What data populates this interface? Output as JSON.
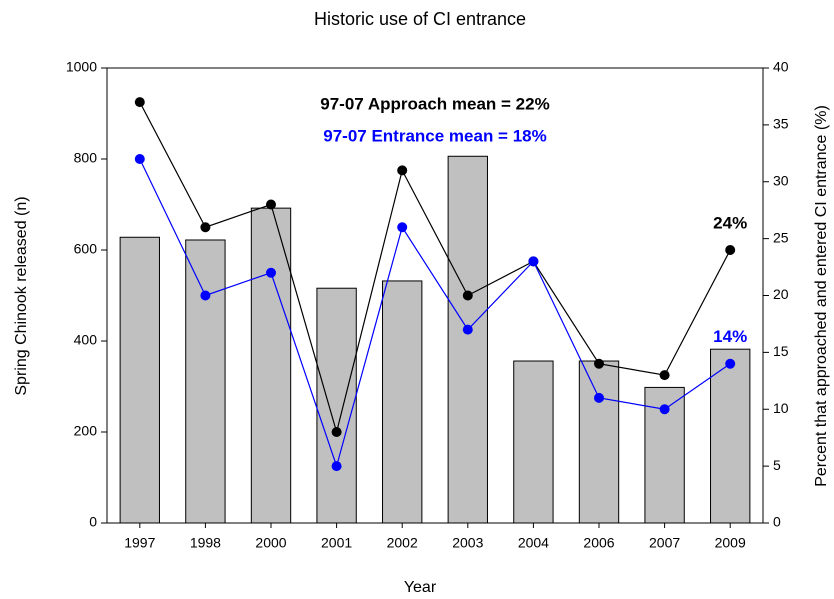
{
  "chart_data": {
    "type": "bar-line",
    "title": "Historic use of CI entrance",
    "x_label": "Year",
    "y_label": "Spring Chinook released (n)",
    "y2_label": "Percent that approached and entered CI entrance (%)",
    "categories": [
      "1997",
      "1998",
      "2000",
      "2001",
      "2002",
      "2003",
      "2004",
      "2006",
      "2007",
      "2009"
    ],
    "series": [
      {
        "type": "bar",
        "color": "#c0c0c0",
        "values": [
          628,
          622,
          692,
          516,
          532,
          806,
          356,
          356,
          298,
          382
        ]
      },
      {
        "type": "line",
        "axis": "y2",
        "color": "#000000",
        "values": [
          37,
          26,
          28,
          8,
          31,
          20,
          23,
          14,
          13,
          24
        ],
        "value_labels": [
          null,
          null,
          null,
          null,
          null,
          null,
          null,
          null,
          null,
          "24%"
        ]
      },
      {
        "type": "line",
        "axis": "y2",
        "color": "#0000ff",
        "values": [
          32,
          20,
          22,
          5,
          26,
          17,
          23,
          11,
          10,
          14
        ],
        "value_labels": [
          null,
          null,
          null,
          null,
          null,
          null,
          null,
          null,
          null,
          "14%"
        ]
      }
    ],
    "annotations": [
      {
        "text": "97-07 Approach mean = 22%",
        "color": "#000000"
      },
      {
        "text": "97-07 Entrance mean = 18%",
        "color": "#0000ff"
      }
    ],
    "ylim": [
      0,
      1000
    ],
    "yticks": [
      0,
      200,
      400,
      600,
      800,
      1000
    ],
    "y2lim": [
      0,
      40
    ],
    "y2ticks": [
      0,
      5,
      10,
      15,
      20,
      25,
      30,
      35,
      40
    ]
  }
}
